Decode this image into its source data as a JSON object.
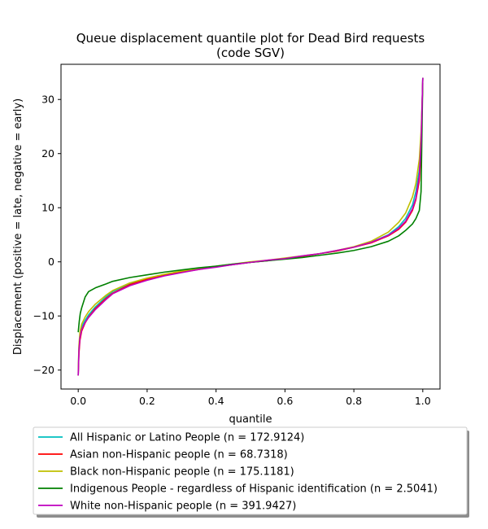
{
  "chart_data": {
    "type": "line",
    "title": "Queue displacement quantile plot for Dead Bird  requests",
    "subtitle": "(code SGV)",
    "xlabel": "quantile",
    "ylabel": "Displacement (positive = late, negative = early)",
    "xlim": [
      -0.05,
      1.05
    ],
    "ylim": [
      -23.5,
      36.5
    ],
    "xticks": [
      0.0,
      0.2,
      0.4,
      0.6,
      0.8,
      1.0
    ],
    "xtick_labels": [
      "0.0",
      "0.2",
      "0.4",
      "0.6",
      "0.8",
      "1.0"
    ],
    "yticks": [
      -20,
      -10,
      0,
      10,
      20,
      30
    ],
    "ytick_labels": [
      "−20",
      "−10",
      "0",
      "10",
      "20",
      "30"
    ],
    "grid": false,
    "legend_position": "below",
    "series": [
      {
        "name": "All Hispanic or Latino People (n = 172.9124)",
        "color": "#00bfbf",
        "points": [
          [
            0.0,
            -21.0
          ],
          [
            0.002,
            -16.0
          ],
          [
            0.005,
            -13.5
          ],
          [
            0.01,
            -12.0
          ],
          [
            0.02,
            -10.8
          ],
          [
            0.03,
            -9.8
          ],
          [
            0.05,
            -8.3
          ],
          [
            0.08,
            -6.5
          ],
          [
            0.1,
            -5.5
          ],
          [
            0.15,
            -4.0
          ],
          [
            0.2,
            -3.1
          ],
          [
            0.25,
            -2.4
          ],
          [
            0.3,
            -1.8
          ],
          [
            0.35,
            -1.3
          ],
          [
            0.4,
            -0.9
          ],
          [
            0.45,
            -0.5
          ],
          [
            0.5,
            -0.1
          ],
          [
            0.55,
            0.2
          ],
          [
            0.6,
            0.6
          ],
          [
            0.65,
            1.0
          ],
          [
            0.7,
            1.5
          ],
          [
            0.75,
            2.0
          ],
          [
            0.8,
            2.7
          ],
          [
            0.85,
            3.6
          ],
          [
            0.9,
            5.0
          ],
          [
            0.93,
            6.5
          ],
          [
            0.95,
            8.0
          ],
          [
            0.97,
            10.5
          ],
          [
            0.98,
            13.0
          ],
          [
            0.99,
            17.0
          ],
          [
            0.995,
            22.0
          ],
          [
            1.0,
            34.0
          ]
        ]
      },
      {
        "name": "Asian non-Hispanic people (n = 68.7318)",
        "color": "#ff0000",
        "points": [
          [
            0.0,
            -21.0
          ],
          [
            0.002,
            -17.0
          ],
          [
            0.005,
            -14.5
          ],
          [
            0.01,
            -12.8
          ],
          [
            0.02,
            -11.3
          ],
          [
            0.03,
            -10.2
          ],
          [
            0.05,
            -8.6
          ],
          [
            0.08,
            -6.8
          ],
          [
            0.1,
            -5.8
          ],
          [
            0.15,
            -4.2
          ],
          [
            0.2,
            -3.2
          ],
          [
            0.25,
            -2.5
          ],
          [
            0.3,
            -1.9
          ],
          [
            0.35,
            -1.4
          ],
          [
            0.4,
            -0.9
          ],
          [
            0.45,
            -0.5
          ],
          [
            0.5,
            -0.1
          ],
          [
            0.55,
            0.2
          ],
          [
            0.6,
            0.6
          ],
          [
            0.65,
            1.0
          ],
          [
            0.7,
            1.5
          ],
          [
            0.75,
            2.0
          ],
          [
            0.8,
            2.7
          ],
          [
            0.85,
            3.5
          ],
          [
            0.9,
            4.8
          ],
          [
            0.93,
            6.0
          ],
          [
            0.95,
            7.3
          ],
          [
            0.97,
            9.5
          ],
          [
            0.98,
            11.5
          ],
          [
            0.99,
            15.0
          ],
          [
            0.995,
            20.0
          ],
          [
            1.0,
            34.0
          ]
        ]
      },
      {
        "name": "Black non-Hispanic people (n = 175.1181)",
        "color": "#bfbf00",
        "points": [
          [
            0.0,
            -20.5
          ],
          [
            0.002,
            -15.5
          ],
          [
            0.005,
            -13.0
          ],
          [
            0.01,
            -11.5
          ],
          [
            0.02,
            -10.2
          ],
          [
            0.03,
            -9.2
          ],
          [
            0.05,
            -7.8
          ],
          [
            0.08,
            -6.2
          ],
          [
            0.1,
            -5.3
          ],
          [
            0.15,
            -3.9
          ],
          [
            0.2,
            -3.0
          ],
          [
            0.25,
            -2.3
          ],
          [
            0.3,
            -1.7
          ],
          [
            0.35,
            -1.2
          ],
          [
            0.4,
            -0.8
          ],
          [
            0.45,
            -0.4
          ],
          [
            0.5,
            0.0
          ],
          [
            0.55,
            0.3
          ],
          [
            0.6,
            0.7
          ],
          [
            0.65,
            1.1
          ],
          [
            0.7,
            1.5
          ],
          [
            0.75,
            2.1
          ],
          [
            0.8,
            2.8
          ],
          [
            0.85,
            3.8
          ],
          [
            0.9,
            5.5
          ],
          [
            0.93,
            7.3
          ],
          [
            0.95,
            9.0
          ],
          [
            0.97,
            12.0
          ],
          [
            0.98,
            14.5
          ],
          [
            0.99,
            19.0
          ],
          [
            0.995,
            24.0
          ],
          [
            1.0,
            33.0
          ]
        ]
      },
      {
        "name": "Indigenous People - regardless of Hispanic identification (n = 2.5041)",
        "color": "#008000",
        "points": [
          [
            0.0,
            -13.0
          ],
          [
            0.003,
            -11.0
          ],
          [
            0.006,
            -9.5
          ],
          [
            0.01,
            -8.5
          ],
          [
            0.015,
            -7.5
          ],
          [
            0.02,
            -6.5
          ],
          [
            0.03,
            -5.5
          ],
          [
            0.05,
            -4.8
          ],
          [
            0.08,
            -4.1
          ],
          [
            0.1,
            -3.6
          ],
          [
            0.15,
            -2.9
          ],
          [
            0.2,
            -2.4
          ],
          [
            0.25,
            -1.9
          ],
          [
            0.3,
            -1.5
          ],
          [
            0.35,
            -1.1
          ],
          [
            0.4,
            -0.8
          ],
          [
            0.45,
            -0.4
          ],
          [
            0.5,
            -0.1
          ],
          [
            0.55,
            0.2
          ],
          [
            0.6,
            0.5
          ],
          [
            0.65,
            0.8
          ],
          [
            0.7,
            1.2
          ],
          [
            0.75,
            1.6
          ],
          [
            0.8,
            2.1
          ],
          [
            0.85,
            2.8
          ],
          [
            0.9,
            3.8
          ],
          [
            0.93,
            4.8
          ],
          [
            0.95,
            5.8
          ],
          [
            0.97,
            7.0
          ],
          [
            0.98,
            8.0
          ],
          [
            0.99,
            9.5
          ],
          [
            0.995,
            13.0
          ],
          [
            1.0,
            34.0
          ]
        ]
      },
      {
        "name": "White non-Hispanic people (n = 391.9427)",
        "color": "#bf00bf",
        "points": [
          [
            0.0,
            -21.0
          ],
          [
            0.002,
            -16.5
          ],
          [
            0.005,
            -14.0
          ],
          [
            0.01,
            -12.5
          ],
          [
            0.02,
            -11.2
          ],
          [
            0.03,
            -10.3
          ],
          [
            0.05,
            -8.8
          ],
          [
            0.08,
            -7.0
          ],
          [
            0.1,
            -5.9
          ],
          [
            0.15,
            -4.4
          ],
          [
            0.2,
            -3.4
          ],
          [
            0.25,
            -2.6
          ],
          [
            0.3,
            -2.0
          ],
          [
            0.35,
            -1.4
          ],
          [
            0.4,
            -1.0
          ],
          [
            0.45,
            -0.5
          ],
          [
            0.5,
            -0.1
          ],
          [
            0.55,
            0.3
          ],
          [
            0.6,
            0.6
          ],
          [
            0.65,
            1.1
          ],
          [
            0.7,
            1.5
          ],
          [
            0.75,
            2.1
          ],
          [
            0.8,
            2.7
          ],
          [
            0.85,
            3.6
          ],
          [
            0.9,
            4.9
          ],
          [
            0.93,
            6.2
          ],
          [
            0.95,
            7.5
          ],
          [
            0.97,
            9.8
          ],
          [
            0.98,
            11.8
          ],
          [
            0.99,
            16.0
          ],
          [
            0.995,
            22.0
          ],
          [
            1.0,
            34.0
          ]
        ]
      }
    ]
  }
}
